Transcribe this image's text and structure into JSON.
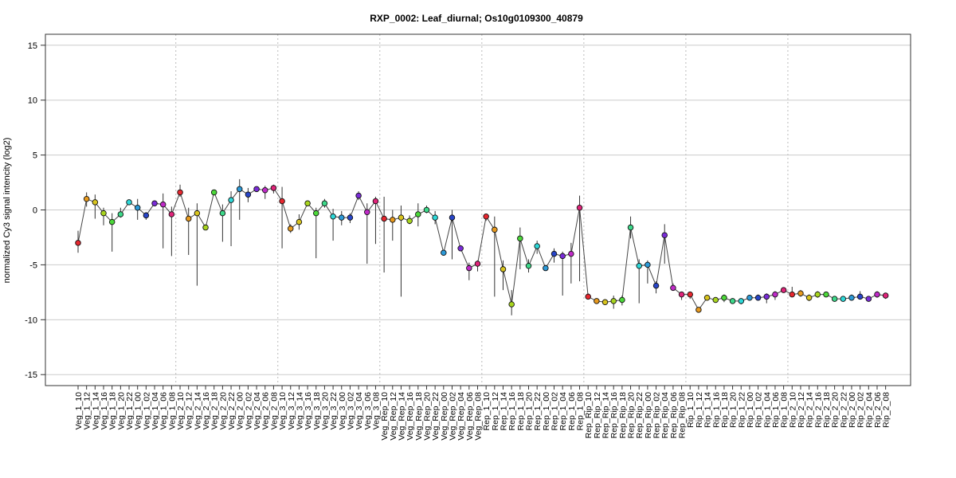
{
  "chart_data": {
    "type": "line",
    "title": "RXP_0002: Leaf_diurnal; Os10g0109300_40879",
    "ylabel": "normalized Cy3 signal intencity (log2)",
    "xlabel": "",
    "ylim": [
      -16,
      16
    ],
    "yticks": [
      -15,
      -10,
      -5,
      0,
      5,
      10,
      15
    ],
    "grid": true,
    "categories": [
      "Veg_1_10",
      "Veg_1_12",
      "Veg_1_14",
      "Veg_1_16",
      "Veg_1_18",
      "Veg_1_20",
      "Veg_1_22",
      "Veg_1_00",
      "Veg_1_02",
      "Veg_1_04",
      "Veg_1_06",
      "Veg_1_08",
      "Veg_2_10",
      "Veg_2_12",
      "Veg_2_14",
      "Veg_2_16",
      "Veg_2_18",
      "Veg_2_20",
      "Veg_2_22",
      "Veg_2_00",
      "Veg_2_02",
      "Veg_2_04",
      "Veg_2_06",
      "Veg_2_08",
      "Veg_3_10",
      "Veg_3_12",
      "Veg_3_14",
      "Veg_3_16",
      "Veg_3_18",
      "Veg_3_20",
      "Veg_3_22",
      "Veg_3_00",
      "Veg_3_02",
      "Veg_3_04",
      "Veg_3_06",
      "Veg_3_08",
      "Veg_Rep_10",
      "Veg_Rep_12",
      "Veg_Rep_14",
      "Veg_Rep_16",
      "Veg_Rep_18",
      "Veg_Rep_20",
      "Veg_Rep_22",
      "Veg_Rep_00",
      "Veg_Rep_02",
      "Veg_Rep_04",
      "Veg_Rep_06",
      "Veg_Rep_08",
      "Rep_1_10",
      "Rep_1_12",
      "Rep_1_14",
      "Rep_1_16",
      "Rep_1_18",
      "Rep_1_20",
      "Rep_1_22",
      "Rep_1_00",
      "Rep_1_02",
      "Rep_1_04",
      "Rep_1_06",
      "Rep_1_08",
      "Rep_Rip_10",
      "Rep_Rip_12",
      "Rep_Rip_14",
      "Rep_Rip_16",
      "Rep_Rip_18",
      "Rep_Rip_20",
      "Rep_Rip_22",
      "Rep_Rip_00",
      "Rep_Rip_02",
      "Rep_Rip_04",
      "Rep_Rip_06",
      "Rep_Rip_08",
      "Rip_1_10",
      "Rip_1_12",
      "Rip_1_14",
      "Rip_1_16",
      "Rip_1_18",
      "Rip_1_20",
      "Rip_1_22",
      "Rip_1_00",
      "Rip_1_02",
      "Rip_1_04",
      "Rip_1_06",
      "Rip_1_08",
      "Rip_2_10",
      "Rip_2_12",
      "Rip_2_14",
      "Rip_2_16",
      "Rip_2_18",
      "Rip_2_20",
      "Rip_2_22",
      "Rip_2_00",
      "Rip_2_02",
      "Rip_2_04",
      "Rip_2_06",
      "Rip_2_08"
    ],
    "series": [
      {
        "values": [
          -3.0,
          1.0,
          0.7,
          -0.3,
          -1.1,
          -0.4,
          0.7,
          0.2,
          -0.5,
          0.6,
          0.5,
          -0.4,
          1.6,
          -0.8,
          -0.3,
          -1.6,
          1.6,
          -0.3,
          0.9,
          1.9,
          1.4,
          1.9,
          1.8,
          2.0,
          0.8,
          -1.7,
          -1.1,
          0.6,
          -0.3,
          0.6,
          -0.6,
          -0.7,
          -0.7,
          1.3,
          -0.2,
          0.8,
          -0.8,
          -0.9,
          -0.7,
          -1.0,
          -0.4,
          0.0,
          -0.7,
          -3.9,
          -0.7,
          -3.5,
          -5.3,
          -4.9,
          -0.6,
          -1.8,
          -5.4,
          -8.6,
          -2.6,
          -5.1,
          -3.3,
          -5.3,
          -4.0,
          -4.2,
          -4.0,
          0.2,
          -7.9,
          -8.3,
          -8.4,
          -8.3,
          -8.2,
          -1.6,
          -5.1,
          -5.0,
          -6.9,
          -2.3,
          -7.1,
          -7.7,
          -7.7,
          -9.1,
          -8.0,
          -8.2,
          -8.0,
          -8.3,
          -8.3,
          -8.0,
          -8.0,
          -7.9,
          -7.7,
          -7.3,
          -7.7,
          -7.6,
          -8.0,
          -7.7,
          -7.7,
          -8.1,
          -8.1,
          -8.0,
          -7.9,
          -8.1,
          -7.7,
          -7.8
        ],
        "err_low": [
          -3.9,
          0.3,
          -0.8,
          -1.4,
          -3.8,
          -0.7,
          0.5,
          -0.9,
          -0.9,
          0.5,
          -3.5,
          -4.2,
          1.2,
          -4.1,
          -6.9,
          -1.8,
          1.5,
          -2.9,
          -3.3,
          -0.9,
          0.7,
          1.8,
          1.0,
          1.5,
          -3.5,
          -2.1,
          -1.8,
          0.6,
          -4.4,
          0.2,
          -2.8,
          -1.4,
          -1.2,
          0.9,
          -4.9,
          -3.1,
          -5.7,
          -2.8,
          -7.9,
          -1.3,
          -1.5,
          -0.3,
          -1.3,
          -4.1,
          -4.5,
          -3.6,
          -6.4,
          -5.6,
          -1.0,
          -7.9,
          -7.3,
          -9.6,
          -5.4,
          -5.7,
          -4.0,
          -5.5,
          -4.8,
          -7.8,
          -6.7,
          -6.5,
          -8.1,
          -8.5,
          -8.5,
          -9.0,
          -8.7,
          -2.6,
          -8.5,
          -6.7,
          -7.6,
          -4.9,
          -7.3,
          -8.2,
          -8.1,
          -9.3,
          -8.2,
          -8.3,
          -8.4,
          -8.3,
          -8.6,
          -8.2,
          -8.2,
          -8.5,
          -8.2,
          -7.5,
          -7.9,
          -7.9,
          -8.3,
          -8.0,
          -7.9,
          -8.3,
          -8.2,
          -8.1,
          -8.0,
          -8.3,
          -8.0,
          -8.1
        ],
        "err_high": [
          -1.9,
          1.6,
          1.4,
          0.2,
          -0.3,
          0.2,
          0.9,
          1.0,
          -0.2,
          0.7,
          1.5,
          0.3,
          2.3,
          0.2,
          0.6,
          -1.4,
          1.7,
          0.5,
          1.7,
          2.8,
          2.0,
          2.0,
          2.2,
          2.3,
          2.1,
          -1.3,
          -0.4,
          0.8,
          0.2,
          1.0,
          0.1,
          -0.1,
          -0.3,
          1.7,
          0.6,
          1.2,
          1.2,
          0.0,
          0.4,
          -0.5,
          0.6,
          0.4,
          -0.1,
          -3.7,
          0.0,
          -3.4,
          -4.8,
          -4.6,
          -0.5,
          -0.6,
          -4.6,
          -7.3,
          -1.6,
          -4.5,
          -2.8,
          -5.1,
          -3.5,
          -3.8,
          -3.0,
          1.3,
          -7.6,
          -8.1,
          -8.3,
          -7.8,
          -7.8,
          -0.6,
          -4.5,
          -4.6,
          -6.5,
          -1.3,
          -6.7,
          -7.5,
          -7.5,
          -8.9,
          -7.8,
          -8.0,
          -7.7,
          -8.1,
          -8.2,
          -7.8,
          -7.7,
          -7.6,
          -7.4,
          -7.1,
          -7.0,
          -7.3,
          -7.7,
          -7.4,
          -7.5,
          -7.9,
          -7.9,
          -7.7,
          -7.4,
          -7.9,
          -7.4,
          -7.6
        ]
      }
    ],
    "group_boundaries_after": [
      "Veg_1_08",
      "Veg_2_08",
      "Veg_3_08",
      "Veg_Rep_08",
      "Rep_1_08",
      "Rep_Rip_08",
      "Rip_1_08"
    ],
    "point_colors": [
      "#e8272f",
      "#e89a1e",
      "#d8c41e",
      "#a8d51e",
      "#4cd93a",
      "#3dd98a",
      "#2dd8d8",
      "#2c9ad8",
      "#2845c8",
      "#7a2cd8",
      "#c02ac8",
      "#e0247a"
    ],
    "colors": {
      "line": "#444444",
      "errorbar": "#333333",
      "grid": "#cccccc",
      "separator": "#bbbbbb",
      "frame": "#333333"
    }
  }
}
